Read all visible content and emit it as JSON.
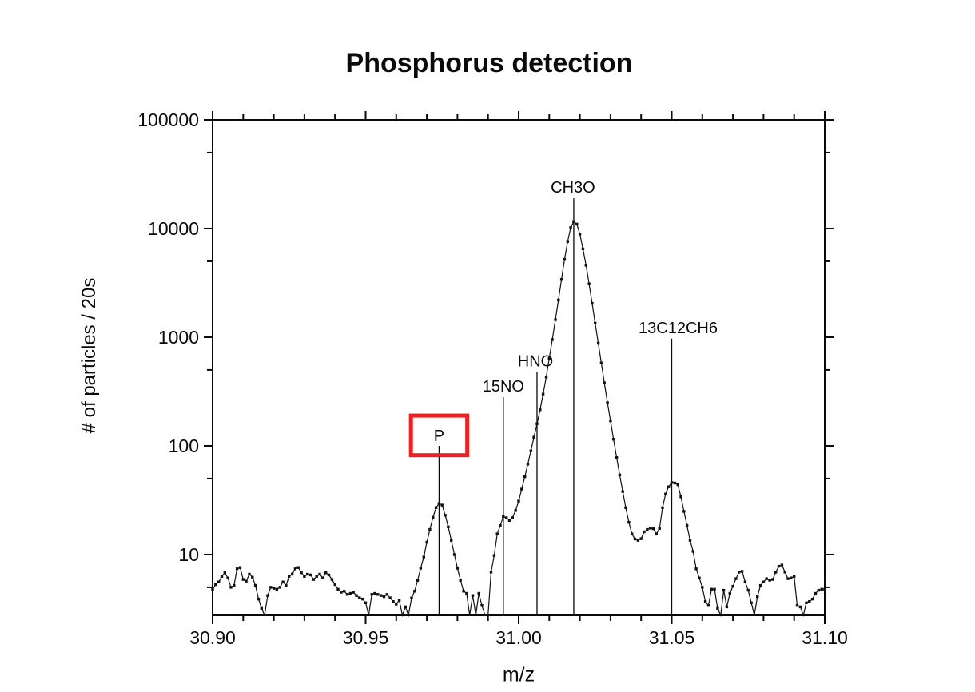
{
  "figure": {
    "background": "#ffffff",
    "axis_color": "#0a0a0a"
  },
  "chart_data": {
    "type": "line",
    "subtype": "line-plus-square-symbol mass spectrum",
    "title": "Phosphorus detection",
    "xlabel": "m/z",
    "ylabel": "# of particles / 20s",
    "y_scale": "log",
    "grid": false,
    "legend": false,
    "xlim": [
      30.9,
      31.1
    ],
    "ylim_log": [
      2.76,
      100000
    ],
    "x_ticks": {
      "major": [
        30.9,
        30.95,
        31.0,
        31.05,
        31.1
      ],
      "labels": [
        "30.90",
        "30.95",
        "31.00",
        "31.05",
        "31.10"
      ],
      "minor_step": 0.01
    },
    "y_ticks": {
      "major": [
        10,
        100,
        1000,
        10000,
        100000
      ],
      "labels": [
        "10",
        "100",
        "1000",
        "10000",
        "100000"
      ],
      "minor": [
        5,
        50,
        500,
        5000,
        50000
      ]
    },
    "line_color": "#111111",
    "marker": "square",
    "x_start": 30.9,
    "x_step": 0.001,
    "values": [
      4.8,
      5.3,
      5.6,
      6.3,
      6.8,
      6.1,
      5.0,
      5.2,
      7.4,
      7.6,
      5.9,
      5.7,
      6.6,
      6.2,
      5.2,
      3.9,
      3.2,
      2.5,
      4.2,
      5.0,
      4.9,
      4.8,
      5.0,
      5.6,
      5.2,
      6.3,
      6.6,
      7.4,
      7.6,
      6.8,
      6.3,
      6.6,
      6.5,
      5.9,
      6.3,
      6.6,
      6.1,
      6.8,
      6.5,
      5.9,
      5.3,
      4.8,
      4.5,
      4.6,
      4.3,
      4.4,
      4.5,
      4.2,
      4.0,
      3.9,
      3.6,
      2.6,
      4.3,
      4.4,
      4.3,
      4.2,
      4.1,
      4.3,
      4.0,
      3.7,
      3.5,
      3.8,
      2.6,
      3.3,
      2.5,
      4.0,
      4.6,
      5.8,
      7.5,
      9.5,
      13,
      17,
      22,
      27,
      29.5,
      28.5,
      23,
      18,
      13.5,
      10,
      7.5,
      5.8,
      4.6,
      4.4,
      2.6,
      4.2,
      2.5,
      4.4,
      3.4,
      2.4,
      2.5,
      6.9,
      9.8,
      15.5,
      18.5,
      22.3,
      21.8,
      20.6,
      21.8,
      25.4,
      31,
      40,
      52,
      68,
      90,
      120,
      160,
      215,
      300,
      430,
      640,
      950,
      1450,
      2200,
      3400,
      5200,
      7600,
      10200,
      11600,
      11000,
      8900,
      6500,
      4600,
      3100,
      2050,
      1350,
      880,
      580,
      380,
      250,
      170,
      115,
      78,
      54,
      38,
      27,
      19.8,
      15.5,
      13.9,
      13.5,
      14.0,
      16.2,
      17.0,
      17.5,
      17.3,
      15.5,
      17.4,
      27,
      36,
      42,
      46,
      45.5,
      44,
      34,
      25,
      18.5,
      13.5,
      10.7,
      7.4,
      6.1,
      5.0,
      3.7,
      3.4,
      4.8,
      4.8,
      3.2,
      2.5,
      4.7,
      3.3,
      4.4,
      5.1,
      6.0,
      6.9,
      7.0,
      5.6,
      4.7,
      3.6,
      2.6,
      4.1,
      5.2,
      5.6,
      6.0,
      5.8,
      5.9,
      6.9,
      7.8,
      8.0,
      6.9,
      6.0,
      6.1,
      6.3,
      3.4,
      3.3,
      2.4,
      3.6,
      3.7,
      3.9,
      4.4,
      4.7,
      4.8,
      4.8
    ],
    "peaks": [
      {
        "label": "P",
        "mz": 30.974,
        "peak_value": 29.5,
        "line_top_value": 100,
        "label_dx": 0,
        "boxed": true
      },
      {
        "label": "15NO",
        "mz": 30.995,
        "peak_value": 22.3,
        "line_top_value": 280,
        "label_dx": 0,
        "boxed": false
      },
      {
        "label": "HNO",
        "mz": 31.006,
        "peak_value": 160,
        "line_top_value": 480,
        "label_dx": -2,
        "boxed": false
      },
      {
        "label": "CH3O",
        "mz": 31.018,
        "peak_value": 11600,
        "line_top_value": 19000,
        "label_dx": -1,
        "boxed": false
      },
      {
        "label": "13C12CH6",
        "mz": 31.05,
        "peak_value": 46,
        "line_top_value": 970,
        "label_dx": 8,
        "boxed": false
      }
    ],
    "highlight_box": {
      "color": "#ed2024",
      "mz_range": [
        30.9648,
        30.9832
      ],
      "value_range": [
        82,
        190
      ]
    }
  }
}
